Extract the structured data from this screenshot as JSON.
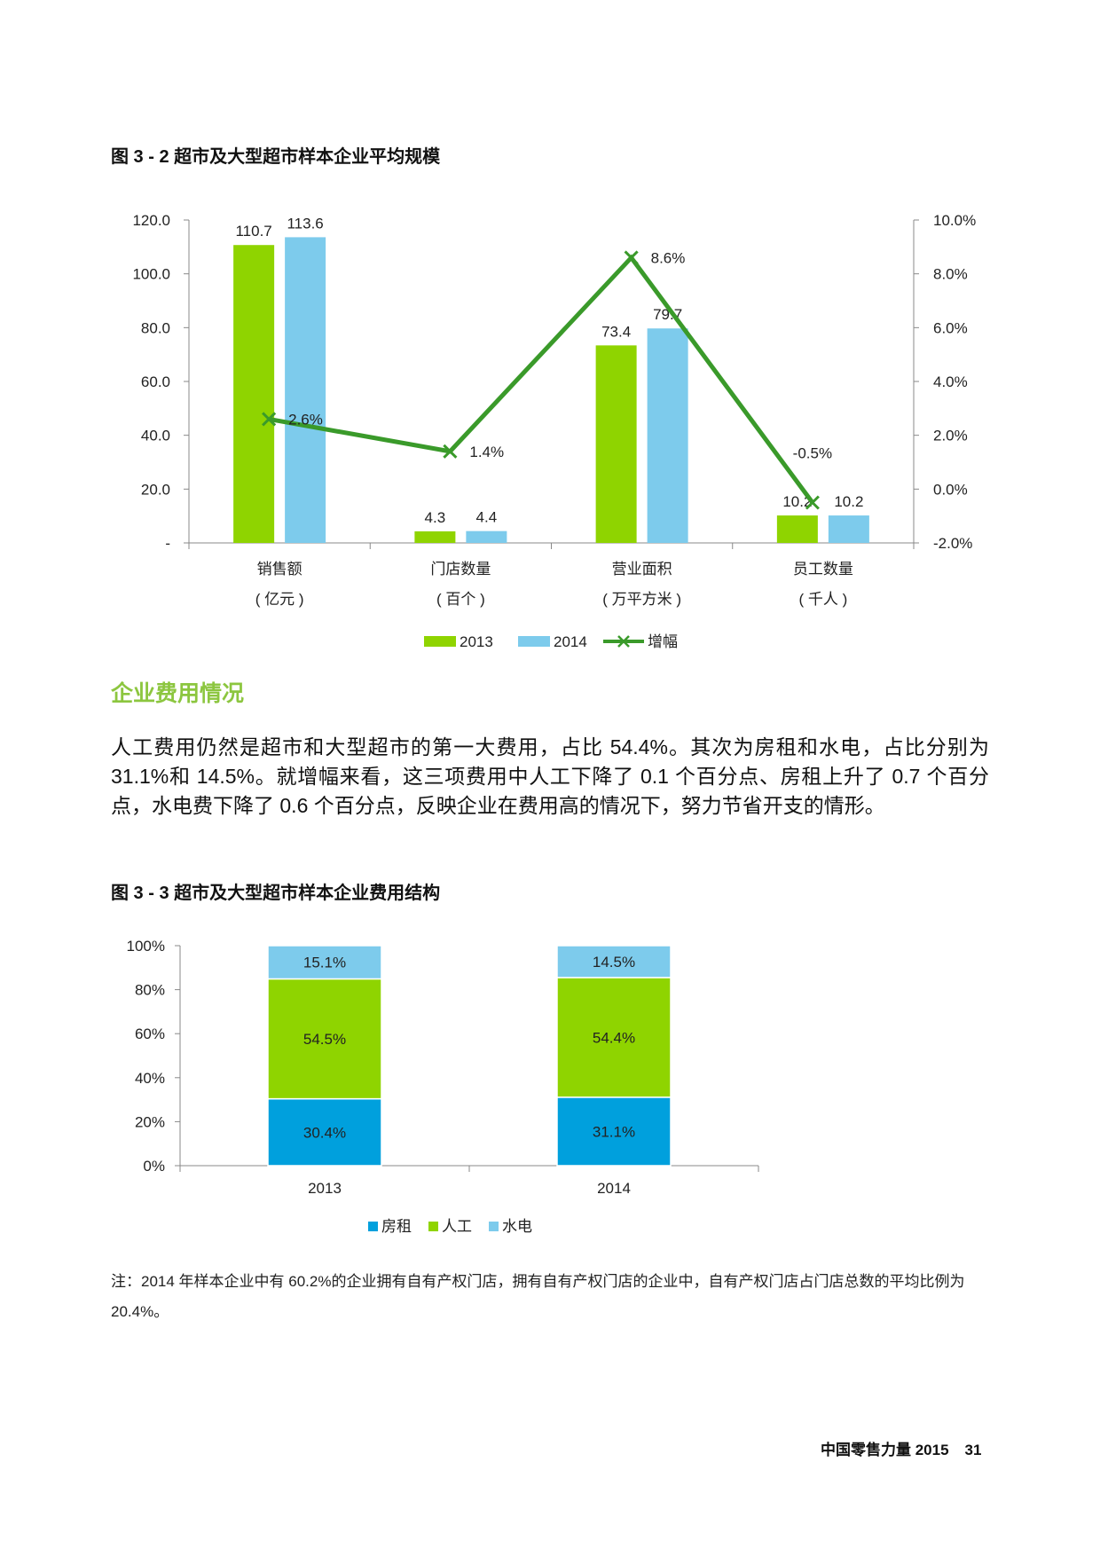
{
  "figure1": {
    "title": "图 3 - 2 超市及大型超市样本企业平均规模"
  },
  "section": {
    "heading": "企业费用情况",
    "body": "人工费用仍然是超市和大型超市的第一大费用，占比 54.4%。其次为房租和水电，占比分别为 31.1%和 14.5%。就增幅来看，这三项费用中人工下降了 0.1 个百分点、房租上升了 0.7 个百分点，水电费下降了 0.6 个百分点，反映企业在费用高的情况下，努力节省开支的情形。"
  },
  "figure2": {
    "title": "图 3 - 3 超市及大型超市样本企业费用结构"
  },
  "note": "注：2014 年样本企业中有 60.2%的企业拥有自有产权门店，拥有自有产权门店的企业中，自有产权门店占门店总数的平均比例为 20.4%。",
  "footer": {
    "publication": "中国零售力量 2015",
    "page": "31"
  },
  "colors": {
    "y2013": "#8fd400",
    "y2014": "#7dcbec",
    "growth": "#3a9a2a",
    "rent": "#00a0dd",
    "labor": "#8fd400",
    "utility": "#7dcbec",
    "heading": "#8cc63f"
  },
  "chart_data": [
    {
      "type": "bar",
      "title": "图 3 - 2 超市及大型超市样本企业平均规模",
      "categories": [
        "销售额",
        "门店数量",
        "营业面积",
        "员工数量"
      ],
      "category_units": [
        "( 亿元 )",
        "( 百个 )",
        "( 万平方米 )",
        "( 千人 )"
      ],
      "series": [
        {
          "name": "2013",
          "values": [
            110.7,
            4.3,
            73.4,
            10.2
          ],
          "labels": [
            "110.7",
            "4.3",
            "73.4",
            "10.2"
          ]
        },
        {
          "name": "2014",
          "values": [
            113.6,
            4.4,
            79.7,
            10.2
          ],
          "labels": [
            "113.6",
            "4.4",
            "79.7",
            "10.2"
          ]
        }
      ],
      "line_series": {
        "name": "增幅",
        "values": [
          2.6,
          1.4,
          8.6,
          -0.5
        ],
        "labels": [
          "2.6%",
          "1.4%",
          "8.6%",
          "-0.5%"
        ],
        "axis": "right"
      },
      "ylim": [
        0,
        120
      ],
      "y_ticks": [
        "-",
        "20.0",
        "40.0",
        "60.0",
        "80.0",
        "100.0",
        "120.0"
      ],
      "y2lim": [
        -2,
        10
      ],
      "y2_ticks": [
        "-2.0%",
        "0.0%",
        "2.0%",
        "4.0%",
        "6.0%",
        "8.0%",
        "10.0%"
      ],
      "legend": [
        "2013",
        "2014",
        "增幅"
      ]
    },
    {
      "type": "bar",
      "stacked": true,
      "title": "图 3 - 3 超市及大型超市样本企业费用结构",
      "categories": [
        "2013",
        "2014"
      ],
      "series": [
        {
          "name": "房租",
          "values": [
            30.4,
            31.1
          ],
          "labels": [
            "30.4%",
            "31.1%"
          ]
        },
        {
          "name": "人工",
          "values": [
            54.5,
            54.4
          ],
          "labels": [
            "54.5%",
            "54.4%"
          ]
        },
        {
          "name": "水电",
          "values": [
            15.1,
            14.5
          ],
          "labels": [
            "15.1%",
            "14.5%"
          ]
        }
      ],
      "ylim": [
        0,
        100
      ],
      "y_ticks": [
        "0%",
        "20%",
        "40%",
        "60%",
        "80%",
        "100%"
      ],
      "legend": [
        "房租",
        "人工",
        "水电"
      ]
    }
  ]
}
